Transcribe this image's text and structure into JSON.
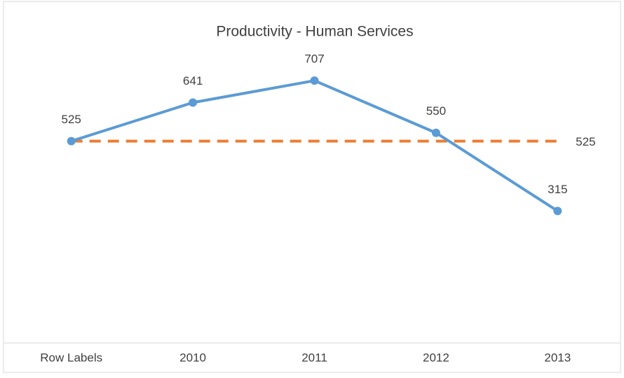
{
  "chart_data": {
    "type": "line",
    "title": "Productivity - Human Services",
    "categories": [
      "Row Labels",
      "2010",
      "2011",
      "2012",
      "2013"
    ],
    "series": [
      {
        "color": "#5b9bd5",
        "values": [
          525,
          641,
          707,
          550,
          315
        ],
        "markers": true,
        "dashed": false,
        "data_labels": "all"
      },
      {
        "color": "#ed7d31",
        "values": [
          525,
          525,
          525,
          525,
          525
        ],
        "markers": false,
        "dashed": true,
        "data_labels": "last"
      }
    ],
    "ylim": [
      0,
      800
    ],
    "grid": false
  }
}
